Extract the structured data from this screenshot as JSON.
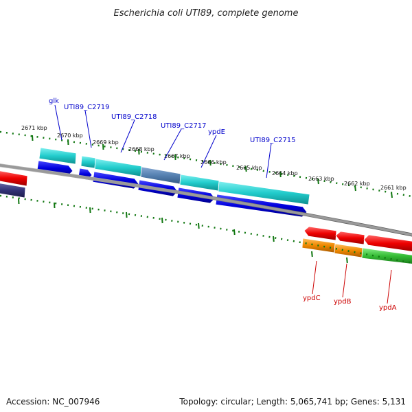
{
  "title": "Escherichia coli UTI89, complete genome",
  "footer": {
    "accession": "Accession: NC_007946",
    "summary": "Topology: circular; Length: 5,065,741 bp; Genes: 5,131"
  },
  "colors": {
    "backbone": "#808080",
    "tick": "#117711",
    "cds_blue": "#0000dd",
    "gene_cyan": "#22cccc",
    "gene_steel": "#5588bb",
    "gene_red": "#ee0000",
    "gene_orange": "#ee8800",
    "gene_green": "#33bb33",
    "navy": "#333377"
  },
  "kbp_labels": [
    {
      "kbp": 2671,
      "text": "2671 kbp"
    },
    {
      "kbp": 2670,
      "text": "2670 kbp"
    },
    {
      "kbp": 2669,
      "text": "2669 kbp"
    },
    {
      "kbp": 2668,
      "text": "2668 kbp"
    },
    {
      "kbp": 2667,
      "text": "2667 kbp"
    },
    {
      "kbp": 2666,
      "text": "2666 kbp"
    },
    {
      "kbp": 2665,
      "text": "2665 kbp"
    },
    {
      "kbp": 2664,
      "text": "2664 kbp"
    },
    {
      "kbp": 2663,
      "text": "2663 kbp"
    },
    {
      "kbp": 2662,
      "text": "2662 kbp"
    },
    {
      "kbp": 2661,
      "text": "2661 kbp"
    }
  ],
  "gene_labels_top": [
    "glk",
    "UTI89_C2719",
    "UTI89_C2718",
    "UTI89_C2717",
    "ypdE",
    "UTI89_C2715"
  ],
  "gene_labels_bottom": [
    "ypdC",
    "ypdB",
    "ypdA"
  ]
}
